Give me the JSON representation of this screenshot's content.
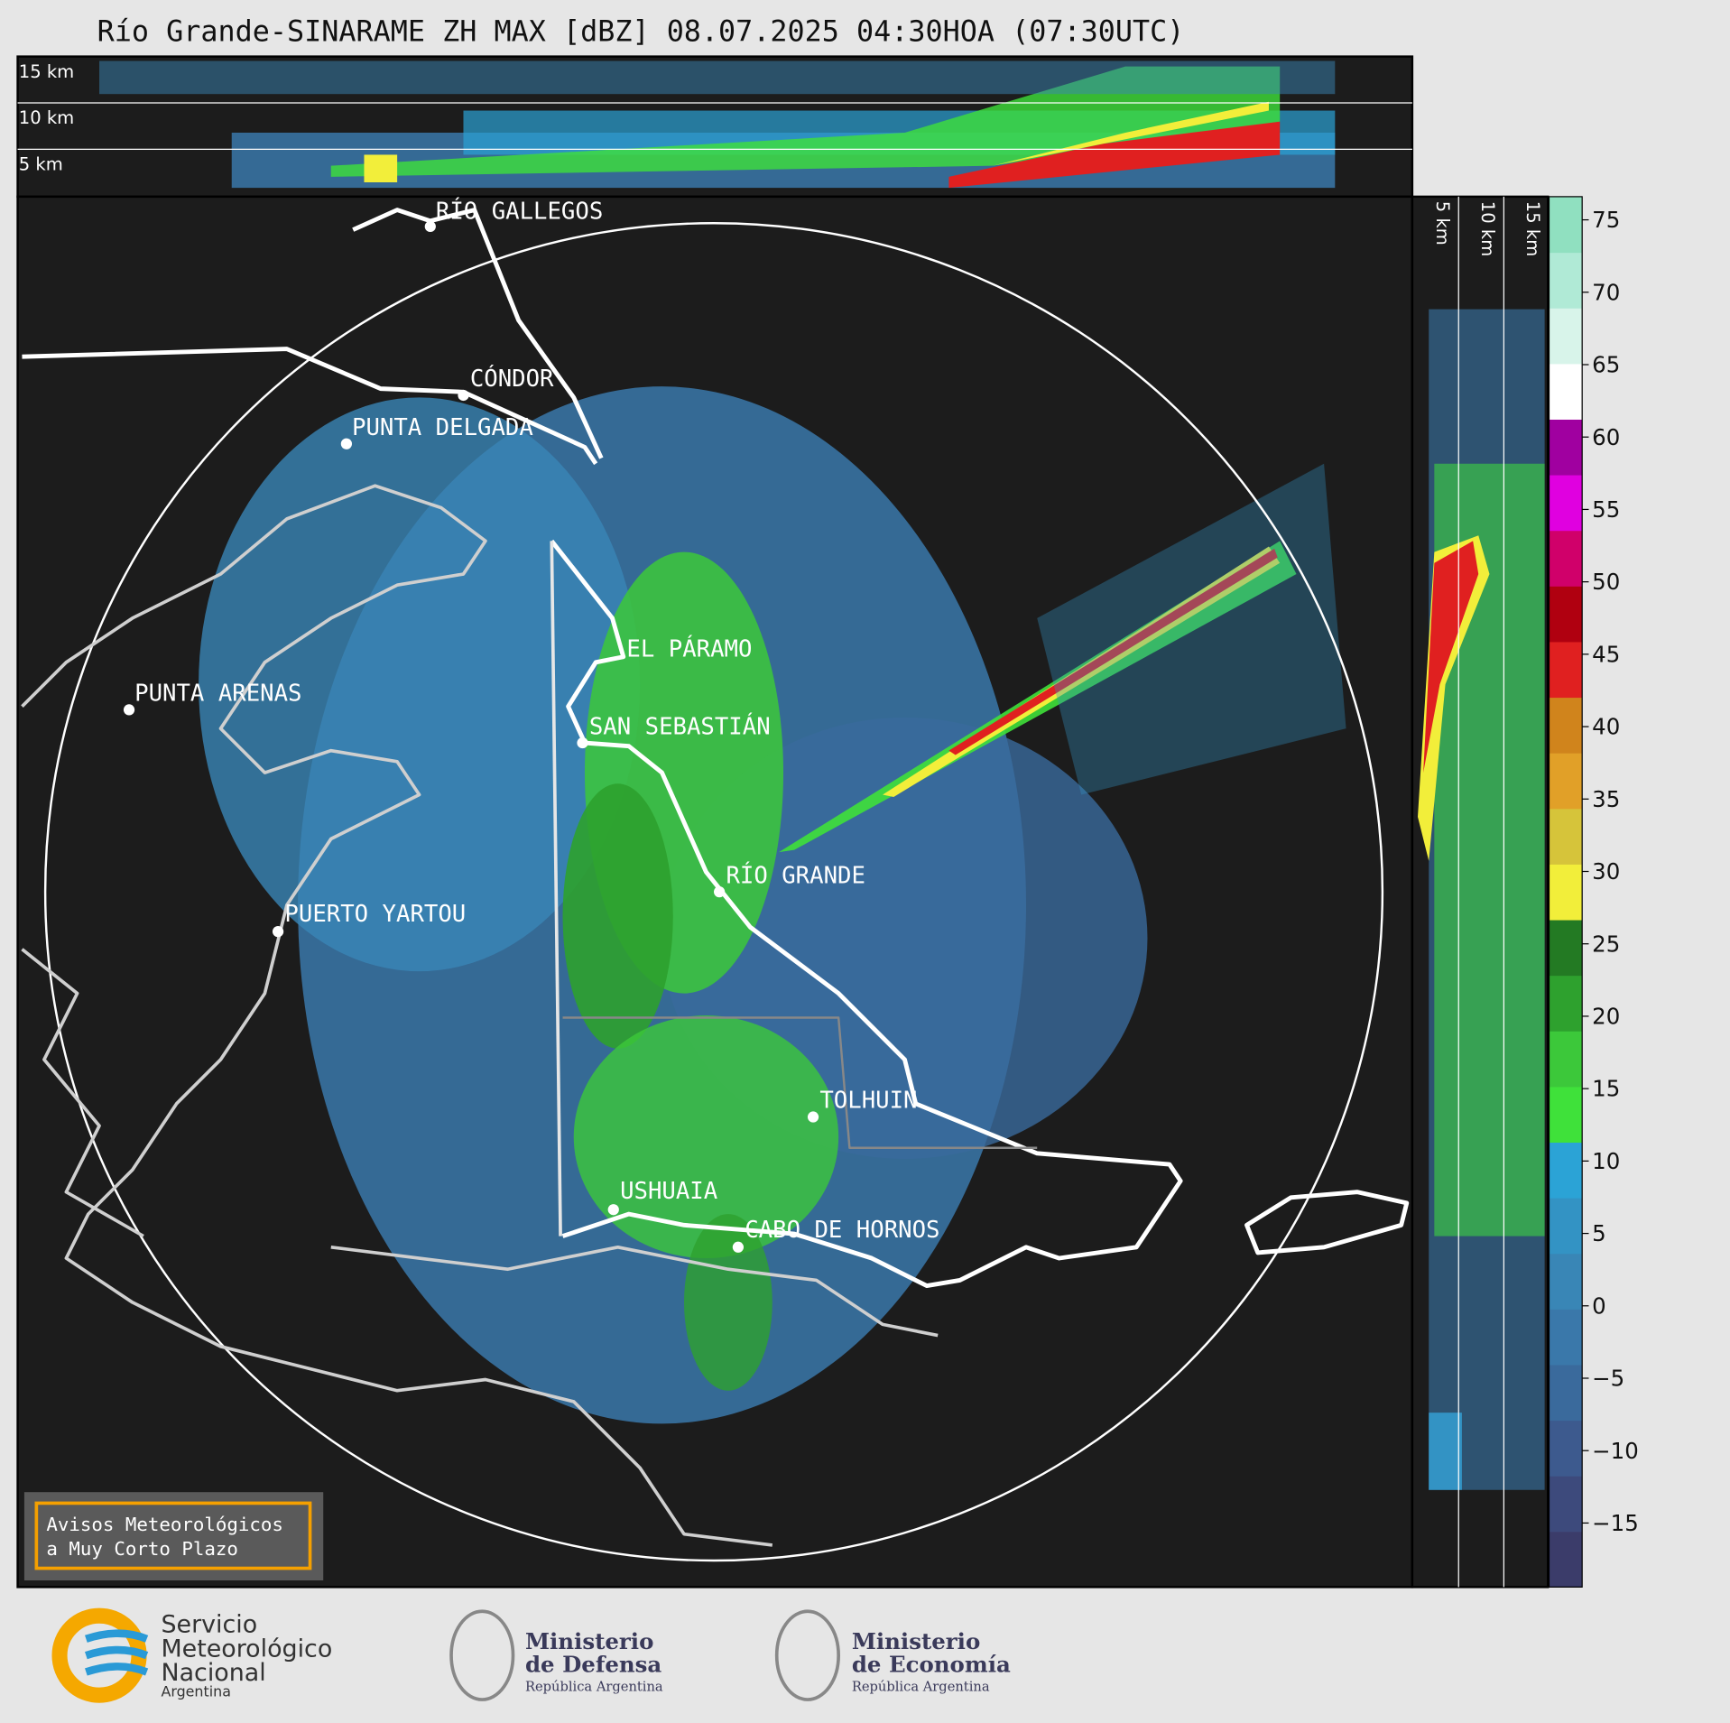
{
  "title": "Río Grande-SINARAME ZH MAX [dBZ] 08.07.2025 04:30HOA (07:30UTC)",
  "altitude_labels": {
    "top": [
      "15 km",
      "10 km",
      "5 km"
    ],
    "right": [
      "5 km",
      "10 km",
      "15 km"
    ]
  },
  "cities": [
    "RÍO GALLEGOS",
    "CÓNDOR",
    "PUNTA DELGADA",
    "EL PÁRAMO",
    "PUNTA ARENAS",
    "SAN SEBASTIÁN",
    "RÍO GRANDE",
    "PUERTO YARTOU",
    "TOLHUIN",
    "USHUAIA",
    "CABO DE HORNOS"
  ],
  "colorbar": {
    "ticks": [
      75,
      70,
      65,
      60,
      55,
      50,
      45,
      40,
      35,
      30,
      25,
      20,
      15,
      10,
      5,
      0,
      {
        "value": -5,
        "label": "−5"
      },
      {
        "value": -10,
        "label": "−10"
      },
      {
        "value": -15,
        "label": "−15"
      }
    ],
    "colors": [
      "#3b3c6a",
      "#3d4a7c",
      "#3d5a8e",
      "#3a6a9c",
      "#3a78aa",
      "#3986b6",
      "#3393c4",
      "#2ba3d6",
      "#3fe13a",
      "#3cc83a",
      "#2ea12e",
      "#237a23",
      "#f2ee3a",
      "#d6c43a",
      "#e1a028",
      "#d0841c",
      "#e02020",
      "#b00010",
      "#d0006a",
      "#e000e0",
      "#a000a0",
      "#ffffff",
      "#d8f4ea",
      "#b0ead6",
      "#90e0c0"
    ]
  },
  "notice": [
    "Avisos Meteorológicos",
    "a Muy Corto Plazo"
  ],
  "logos": {
    "smn": [
      "Servicio",
      "Meteorológico",
      "Nacional",
      "Argentina"
    ],
    "defensa": [
      "Ministerio",
      "de Defensa",
      "República Argentina"
    ],
    "economia": [
      "Ministerio",
      "de Economía",
      "República Argentina"
    ]
  }
}
